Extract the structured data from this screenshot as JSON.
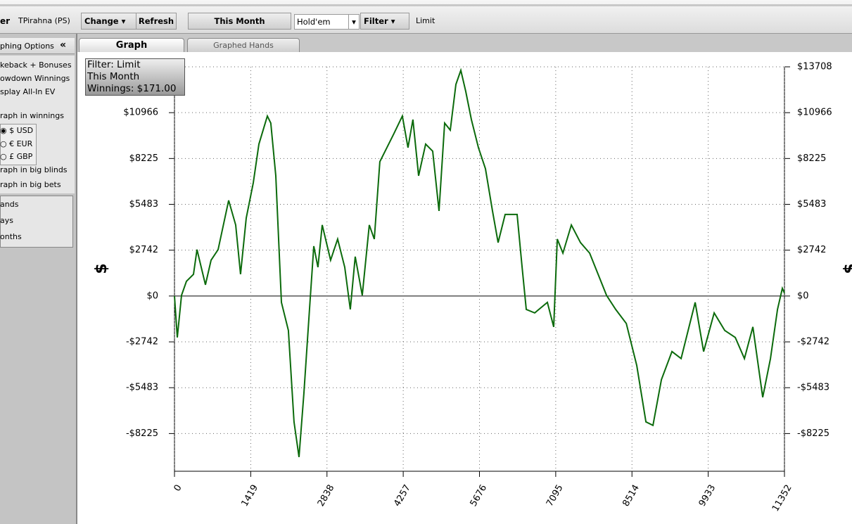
{
  "toolbar": {
    "player_label": "er",
    "player": "TPirahna (PS)",
    "change": "Change",
    "refresh": "Refresh",
    "period": "This Month",
    "game": "Hold'em",
    "filter": "Filter",
    "limit": "Limit"
  },
  "sidebar": {
    "header": "phing Options",
    "collapse": "«",
    "options": [
      "keback + Bonuses",
      "owdown Winnings",
      "splay All-In EV"
    ],
    "graph_in_winnings": "raph in winnings",
    "currencies": [
      "$ USD",
      "€ EUR",
      "£ GBP"
    ],
    "graph_in_big_blinds": "raph in big blinds",
    "graph_in_big_bets": "raph in big bets",
    "x_modes": [
      "ands",
      "ays",
      "onths"
    ]
  },
  "tabs": [
    "Graph",
    "Graphed Hands"
  ],
  "info_box": [
    "Filter: Limit",
    "This Month",
    "Winnings: $171.00"
  ],
  "chart_data": {
    "type": "line",
    "y_label": "$",
    "color": "#0b6a0b",
    "x": [
      0,
      52,
      131,
      223,
      353,
      419,
      576,
      681,
      812,
      1008,
      1139,
      1230,
      1335,
      1466,
      1571,
      1728,
      1793,
      1885,
      1990,
      2120,
      2225,
      2317,
      2408,
      2513,
      2592,
      2670,
      2749,
      2906,
      3037,
      3168,
      3272,
      3364,
      3495,
      3626,
      3718,
      3822,
      3953,
      4084,
      4241,
      4346,
      4438,
      4543,
      4674,
      4805,
      4923,
      5028,
      5133,
      5237,
      5329,
      5421,
      5526,
      5657,
      5787,
      5918,
      6023,
      6154,
      6377,
      6469,
      6547,
      6704,
      6940,
      7058,
      7124,
      7229,
      7386,
      7556,
      7726,
      7884,
      8041,
      8211,
      8408,
      8604,
      8774,
      8905,
      9062,
      9259,
      9429,
      9560,
      9691,
      9848,
      10044,
      10240,
      10437,
      10607,
      10764,
      10947,
      11091,
      11222,
      11313,
      11352
    ],
    "values": [
      0,
      -2481,
      42,
      883,
      1300,
      2775,
      673,
      2145,
      2775,
      5719,
      4247,
      1303,
      4668,
      6770,
      9083,
      10765,
      10344,
      7191,
      -378,
      -2060,
      -7527,
      -9629,
      -5845,
      -799,
      2985,
      1724,
      4247,
      2145,
      3406,
      1724,
      -799,
      2355,
      42,
      4247,
      3406,
      8032,
      8873,
      9714,
      10765,
      8873,
      10555,
      7191,
      9083,
      8663,
      5088,
      10344,
      9924,
      12657,
      13498,
      12237,
      10555,
      8873,
      7611,
      5088,
      3196,
      4878,
      4878,
      1724,
      -799,
      -1009,
      -378,
      -1850,
      3406,
      2565,
      4247,
      3196,
      2565,
      1303,
      42,
      -799,
      -1640,
      -4163,
      -7527,
      -7737,
      -5004,
      -3322,
      -3742,
      -2060,
      -378,
      -3322,
      -1009,
      -2060,
      -2481,
      -3742,
      -1850,
      -6055,
      -3742,
      -799,
      463,
      171
    ],
    "xlim": [
      0,
      11352
    ],
    "xticks": [
      0,
      1419,
      2838,
      4257,
      5676,
      7095,
      8514,
      9933,
      11352
    ],
    "ylim": [
      -10480,
      13708
    ],
    "yticks": [
      {
        "value": 13708,
        "label": "$13708"
      },
      {
        "value": 10966,
        "label": "$10966"
      },
      {
        "value": 8225,
        "label": "$8225"
      },
      {
        "value": 5483,
        "label": "$5483"
      },
      {
        "value": 2742,
        "label": "$2742"
      },
      {
        "value": 0,
        "label": "$0"
      },
      {
        "value": -2742,
        "label": "-$2742"
      },
      {
        "value": -5483,
        "label": "-$5483"
      },
      {
        "value": -8225,
        "label": "-$8225"
      }
    ],
    "grid": true
  }
}
